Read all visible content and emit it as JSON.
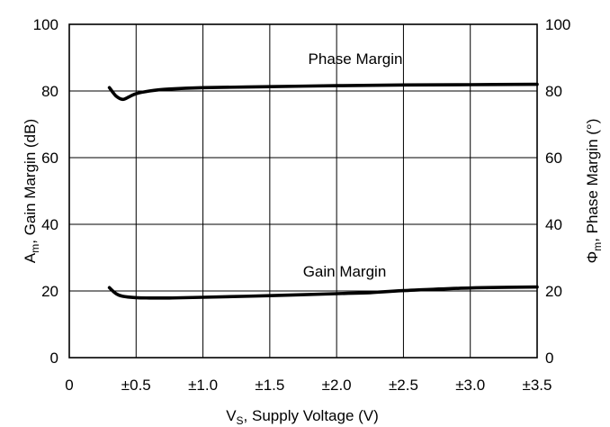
{
  "chart_data": {
    "type": "line",
    "x_tick_labels": [
      "0",
      "±0.5",
      "±1.0",
      "±1.5",
      "±2.0",
      "±2.5",
      "±3.0",
      "±3.5"
    ],
    "y_left_ticks": [
      0,
      20,
      40,
      60,
      80,
      100
    ],
    "y_right_ticks": [
      0,
      20,
      40,
      60,
      80,
      100
    ],
    "xlim": [
      0,
      3.5
    ],
    "ylim": [
      0,
      100
    ],
    "grid": true,
    "xlabel": {
      "main": "V",
      "sub": "S",
      "rest": ", Supply Voltage (V)"
    },
    "ylabel_left": {
      "main": "A",
      "sub": "m",
      "rest": ", Gain Margin (dB)"
    },
    "ylabel_right": {
      "main": "Φ",
      "sub": "m",
      "rest": ", Phase Margin (°)"
    },
    "series": [
      {
        "name": "Phase Margin",
        "axis": "right",
        "x": [
          0.3,
          0.35,
          0.4,
          0.45,
          0.5,
          0.6,
          0.75,
          1.0,
          1.5,
          2.0,
          2.5,
          3.0,
          3.5
        ],
        "y": [
          81.0,
          78.5,
          77.5,
          78.3,
          79.2,
          80.0,
          80.6,
          81.0,
          81.3,
          81.6,
          81.8,
          81.9,
          82.0
        ]
      },
      {
        "name": "Gain Margin",
        "axis": "left",
        "x": [
          0.3,
          0.35,
          0.4,
          0.5,
          0.6,
          0.75,
          1.0,
          1.5,
          2.0,
          2.25,
          2.5,
          3.0,
          3.5
        ],
        "y": [
          21.0,
          19.2,
          18.4,
          18.0,
          17.9,
          17.9,
          18.1,
          18.6,
          19.2,
          19.5,
          20.1,
          20.9,
          21.2
        ]
      }
    ]
  }
}
